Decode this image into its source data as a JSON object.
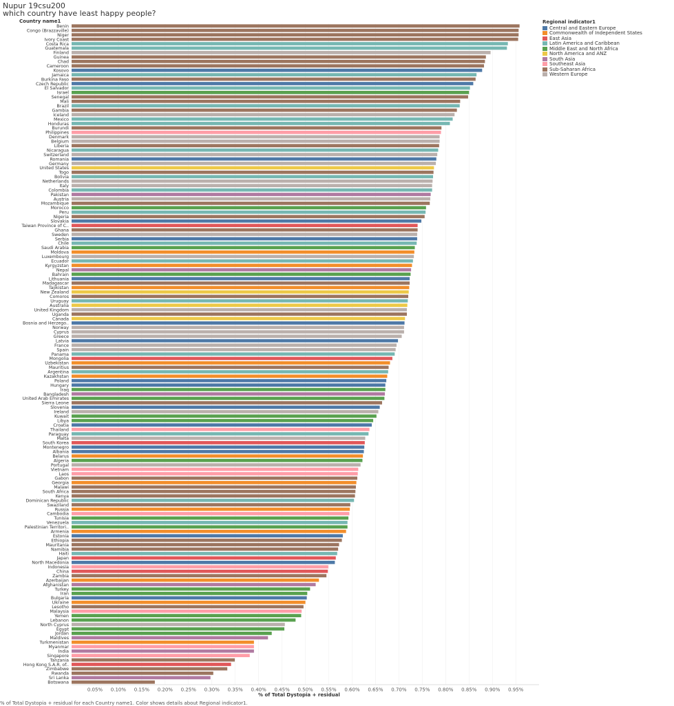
{
  "title": "Nupur 19csu200",
  "subtitle": "which country have least happy people?",
  "column_header": "Country name1",
  "axis_title": "% of Total Dystopia + residual",
  "footer": "% of Total Dystopia + residual for each Country name1.  Color shows details about Regional indicator1.",
  "legend": {
    "title": "Regional indicator1",
    "items": [
      {
        "label": "Central and Eastern Europe",
        "color": "#4e79a7"
      },
      {
        "label": "Commonwealth of Independent States",
        "color": "#f28e2b"
      },
      {
        "label": "East Asia",
        "color": "#e15759"
      },
      {
        "label": "Latin America and Caribbean",
        "color": "#76b7b2"
      },
      {
        "label": "Middle East and North Africa",
        "color": "#59a14f"
      },
      {
        "label": "North America and ANZ",
        "color": "#edc948"
      },
      {
        "label": "South Asia",
        "color": "#b07aa1"
      },
      {
        "label": "Southeast Asia",
        "color": "#ff9da7"
      },
      {
        "label": "Sub-Saharan Africa",
        "color": "#9c755f"
      },
      {
        "label": "Western Europe",
        "color": "#bab0ac"
      }
    ]
  },
  "chart_data": {
    "type": "bar",
    "orientation": "horizontal",
    "xlabel": "% of Total Dystopia + residual",
    "xlim": [
      0,
      0.985
    ],
    "ticks": [
      0.05,
      0.1,
      0.15,
      0.2,
      0.25,
      0.3,
      0.35,
      0.4,
      0.45,
      0.5,
      0.55,
      0.6,
      0.65,
      0.7,
      0.75,
      0.8,
      0.85,
      0.9,
      0.95
    ],
    "tick_labels": [
      "0.05%",
      "0.10%",
      "0.15%",
      "0.20%",
      "0.25%",
      "0.30%",
      "0.35%",
      "0.40%",
      "0.45%",
      "0.50%",
      "0.55%",
      "0.60%",
      "0.65%",
      "0.70%",
      "0.75%",
      "0.80%",
      "0.85%",
      "0.90%",
      "0.95%"
    ],
    "categories": [
      "Benin",
      "Congo (Brazzaville)",
      "Niger",
      "Ivory Coast",
      "Costa Rica",
      "Guatemala",
      "Finland",
      "Guinea",
      "Chad",
      "Cameroon",
      "Kosovo",
      "Jamaica",
      "Burkina Faso",
      "Czech Republic",
      "El Salvador",
      "Israel",
      "Senegal",
      "Mali",
      "Brazil",
      "Gambia",
      "Iceland",
      "Mexico",
      "Honduras",
      "Burundi",
      "Philippines",
      "Denmark",
      "Belgium",
      "Liberia",
      "Nicaragua",
      "Switzerland",
      "Romania",
      "Germany",
      "United States",
      "Togo",
      "Bolivia",
      "Netherlands",
      "Italy",
      "Colombia",
      "Pakistan",
      "Austria",
      "Mozambique",
      "Morocco",
      "Peru",
      "Nigeria",
      "Slovakia",
      "Taiwan Province of C..",
      "Ghana",
      "Sweden",
      "Serbia",
      "Chile",
      "Saudi Arabia",
      "Moldova",
      "Luxembourg",
      "Ecuador",
      "Kyrgyzstan",
      "Nepal",
      "Bahrain",
      "Lithuania",
      "Madagascar",
      "Tajikistan",
      "New Zealand",
      "Comoros",
      "Uruguay",
      "Australia",
      "United Kingdom",
      "Uganda",
      "Canada",
      "Bosnia and Herzego..",
      "Norway",
      "Cyprus",
      "Greece",
      "Latvia",
      "France",
      "Spain",
      "Panama",
      "Mongolia",
      "Uzbekistan",
      "Mauritius",
      "Argentina",
      "Kazakhstan",
      "Poland",
      "Hungary",
      "Iraq",
      "Bangladesh",
      "United Arab Emirates",
      "Sierra Leone",
      "Slovenia",
      "Ireland",
      "Kuwait",
      "Libya",
      "Croatia",
      "Thailand",
      "Paraguay",
      "Malta",
      "South Korea",
      "Montenegro",
      "Albania",
      "Belarus",
      "Algeria",
      "Portugal",
      "Vietnam",
      "Laos",
      "Gabon",
      "Georgia",
      "Malawi",
      "South Africa",
      "Kenya",
      "Dominican Republic",
      "Swaziland",
      "Russia",
      "Cambodia",
      "Tunisia",
      "Venezuela",
      "Palestinian Territori..",
      "Armenia",
      "Estonia",
      "Ethiopia",
      "Mauritania",
      "Namibia",
      "Haiti",
      "Japan",
      "North Macedonia",
      "Indonesia",
      "China",
      "Zambia",
      "Azerbaijan",
      "Afghanistan",
      "Turkey",
      "Iran",
      "Bulgaria",
      "Ukraine",
      "Lesotho",
      "Malaysia",
      "Yemen",
      "Lebanon",
      "North Cyprus",
      "Egypt",
      "Jordan",
      "Maldives",
      "Turkmenistan",
      "Myanmar",
      "India",
      "Singapore",
      "Tanzania",
      "Hong Kong S.A.R. of..",
      "Zimbabwe",
      "Rwanda",
      "Sri Lanka",
      "Botswana"
    ],
    "values": [
      0.958,
      0.956,
      0.956,
      0.955,
      0.933,
      0.931,
      0.896,
      0.886,
      0.884,
      0.882,
      0.878,
      0.866,
      0.864,
      0.859,
      0.852,
      0.85,
      0.848,
      0.831,
      0.83,
      0.824,
      0.819,
      0.815,
      0.809,
      0.791,
      0.79,
      0.787,
      0.787,
      0.786,
      0.784,
      0.782,
      0.78,
      0.779,
      0.775,
      0.774,
      0.773,
      0.772,
      0.771,
      0.771,
      0.768,
      0.767,
      0.766,
      0.758,
      0.757,
      0.755,
      0.748,
      0.74,
      0.74,
      0.739,
      0.739,
      0.738,
      0.734,
      0.733,
      0.732,
      0.73,
      0.728,
      0.726,
      0.725,
      0.723,
      0.723,
      0.722,
      0.721,
      0.72,
      0.719,
      0.718,
      0.717,
      0.717,
      0.713,
      0.712,
      0.711,
      0.711,
      0.706,
      0.698,
      0.695,
      0.693,
      0.691,
      0.686,
      0.681,
      0.678,
      0.677,
      0.675,
      0.673,
      0.671,
      0.671,
      0.67,
      0.669,
      0.664,
      0.659,
      0.656,
      0.652,
      0.645,
      0.642,
      0.637,
      0.635,
      0.628,
      0.627,
      0.626,
      0.625,
      0.623,
      0.622,
      0.618,
      0.613,
      0.612,
      0.611,
      0.609,
      0.608,
      0.607,
      0.606,
      0.604,
      0.596,
      0.595,
      0.594,
      0.592,
      0.59,
      0.59,
      0.587,
      0.58,
      0.578,
      0.572,
      0.57,
      0.568,
      0.565,
      0.563,
      0.549,
      0.548,
      0.545,
      0.529,
      0.522,
      0.51,
      0.504,
      0.503,
      0.5,
      0.496,
      0.492,
      0.491,
      0.479,
      0.456,
      0.455,
      0.428,
      0.42,
      0.39,
      0.39,
      0.39,
      0.381,
      0.349,
      0.341,
      0.333,
      0.303,
      0.297,
      0.178
    ],
    "regions": [
      8,
      8,
      8,
      8,
      3,
      3,
      9,
      8,
      8,
      8,
      0,
      3,
      8,
      0,
      3,
      4,
      8,
      8,
      3,
      8,
      9,
      3,
      3,
      8,
      7,
      9,
      9,
      8,
      3,
      9,
      0,
      9,
      5,
      8,
      3,
      9,
      9,
      3,
      6,
      9,
      8,
      4,
      3,
      8,
      0,
      2,
      8,
      9,
      0,
      3,
      4,
      1,
      9,
      3,
      1,
      6,
      4,
      0,
      8,
      1,
      5,
      8,
      3,
      5,
      9,
      8,
      5,
      0,
      9,
      9,
      9,
      0,
      9,
      9,
      3,
      2,
      1,
      8,
      3,
      1,
      0,
      0,
      4,
      6,
      4,
      8,
      0,
      9,
      4,
      4,
      0,
      7,
      3,
      9,
      2,
      0,
      0,
      1,
      4,
      9,
      7,
      7,
      8,
      1,
      8,
      8,
      8,
      3,
      8,
      1,
      7,
      4,
      3,
      4,
      1,
      0,
      8,
      8,
      8,
      3,
      2,
      0,
      7,
      2,
      8,
      1,
      6,
      4,
      4,
      0,
      1,
      8,
      7,
      4,
      4,
      9,
      4,
      4,
      6,
      1,
      7,
      6,
      7,
      8,
      2,
      8,
      8,
      6,
      8
    ]
  }
}
